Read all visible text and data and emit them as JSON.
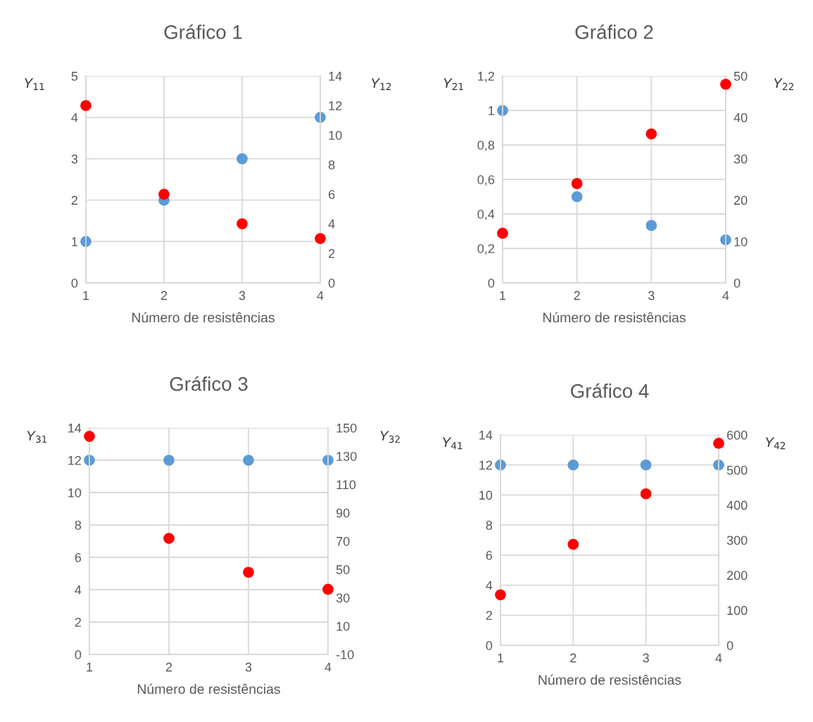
{
  "chart_data": [
    {
      "type": "scatter",
      "title": "Gráfico 1",
      "xlabel": "Número de resistências",
      "ylabel": "Y$_{11}$",
      "y2label": "Y$_{12}$",
      "x": [
        1,
        2,
        3,
        4
      ],
      "xlim": [
        1,
        4
      ],
      "xticks": [
        1,
        2,
        3,
        4
      ],
      "ylim": [
        0,
        5
      ],
      "yticks": [
        0,
        1,
        2,
        3,
        4,
        5
      ],
      "y2lim": [
        0,
        14
      ],
      "y2ticks": [
        0,
        2,
        4,
        6,
        8,
        10,
        12,
        14
      ],
      "grid": true,
      "marker": "circle",
      "series": [
        {
          "color": "#5b9bd5",
          "values": [
            1,
            2,
            3,
            4
          ]
        },
        {
          "color": "#ff0000",
          "axis": "y2",
          "values": [
            12,
            6,
            4,
            3
          ]
        }
      ]
    },
    {
      "type": "scatter",
      "title": "Gráfico 2",
      "xlabel": "Número de resistências",
      "ylabel": "Y$_{21}$",
      "y2label": "Y$_{22}$",
      "x": [
        1,
        2,
        3,
        4
      ],
      "xlim": [
        1,
        4
      ],
      "xticks": [
        1,
        2,
        3,
        4
      ],
      "ylim": [
        0,
        1.2
      ],
      "yticks": [
        {
          "value": 0,
          "label": "0"
        },
        {
          "value": 0.2,
          "label": "0,2"
        },
        {
          "value": 0.4,
          "label": "0,4"
        },
        {
          "value": 0.6,
          "label": "0,6"
        },
        {
          "value": 0.8,
          "label": "0,8"
        },
        {
          "value": 1,
          "label": "1"
        },
        {
          "value": 1.2,
          "label": "1,2"
        }
      ],
      "y2lim": [
        0,
        50
      ],
      "y2ticks": [
        0,
        10,
        20,
        30,
        40,
        50
      ],
      "grid": true,
      "marker": "circle",
      "series": [
        {
          "color": "#5b9bd5",
          "values": [
            1,
            0.5,
            0.333,
            0.25
          ]
        },
        {
          "color": "#ff0000",
          "axis": "y2",
          "values": [
            12,
            24,
            36,
            48
          ]
        }
      ]
    },
    {
      "type": "scatter",
      "title": "Gráfico 3",
      "xlabel": "Número de resistências",
      "ylabel": "Y$_{31}$",
      "y2label": "Y$_{32}$",
      "x": [
        1,
        2,
        3,
        4
      ],
      "xlim": [
        1,
        4
      ],
      "xticks": [
        1,
        2,
        3,
        4
      ],
      "ylim": [
        0,
        14
      ],
      "yticks": [
        0,
        2,
        4,
        6,
        8,
        10,
        12,
        14
      ],
      "y2lim": [
        -10,
        150
      ],
      "y2ticks": [
        -10,
        10,
        30,
        50,
        70,
        90,
        110,
        130,
        150
      ],
      "grid": true,
      "marker": "circle",
      "series": [
        {
          "color": "#5b9bd5",
          "values": [
            12,
            12,
            12,
            12
          ]
        },
        {
          "color": "#ff0000",
          "axis": "y2",
          "values": [
            144,
            72,
            48,
            36
          ]
        }
      ]
    },
    {
      "type": "scatter",
      "title": "Gráfico 4",
      "xlabel": "Número de resistências",
      "ylabel": "Y$_{41}$",
      "y2label": "Y$_{42}$",
      "x": [
        1,
        2,
        3,
        4
      ],
      "xlim": [
        1,
        4
      ],
      "xticks": [
        1,
        2,
        3,
        4
      ],
      "ylim": [
        0,
        14
      ],
      "yticks": [
        0,
        2,
        4,
        6,
        8,
        10,
        12,
        14
      ],
      "y2lim": [
        0,
        600
      ],
      "y2ticks": [
        0,
        100,
        200,
        300,
        400,
        500,
        600
      ],
      "grid": true,
      "marker": "circle",
      "series": [
        {
          "color": "#5b9bd5",
          "values": [
            12,
            12,
            12,
            12
          ]
        },
        {
          "color": "#ff0000",
          "axis": "y2",
          "values": [
            144,
            288,
            432,
            576
          ]
        }
      ]
    }
  ]
}
